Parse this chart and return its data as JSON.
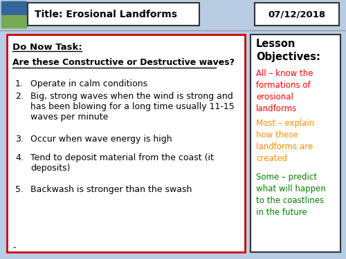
{
  "background_color": "#b8cce4",
  "title_text": "Title: Erosional Landforms",
  "date_text": "07/12/2018",
  "do_now_title": "Do Now Task:",
  "do_now_question": "Are these Constructive or Destructive waves?",
  "items": [
    "Operate in calm conditions",
    "Big, strong waves when the wind is strong and\nhas been blowing for a long time usually 11-15\nwaves per minute",
    "Occur when wave energy is high",
    "Tend to deposit material from the coast (it\ndeposits)",
    "Backwash is stronger than the swash"
  ],
  "item_nums": [
    "1.",
    "2.",
    "3.",
    "4.",
    "5."
  ],
  "item_y_positions": [
    115,
    133,
    195,
    222,
    268
  ],
  "lesson_obj_title": "Lesson\nObjectives:",
  "obj_all_color": "#ff0000",
  "obj_most_color": "#ff8c00",
  "obj_some_color": "#008000",
  "obj_all": "All – know the\nformations of\nerosional\nlandforms",
  "obj_most": "Most – explain\nhow these\nlandforms are\ncreated",
  "obj_some": "Some – predict\nwhat will happen\nto the coastlines\nin the future",
  "main_box_color": "#ffffff",
  "main_box_border": "#cc0000",
  "right_box_border": "#333333",
  "title_box_border": "#333333"
}
